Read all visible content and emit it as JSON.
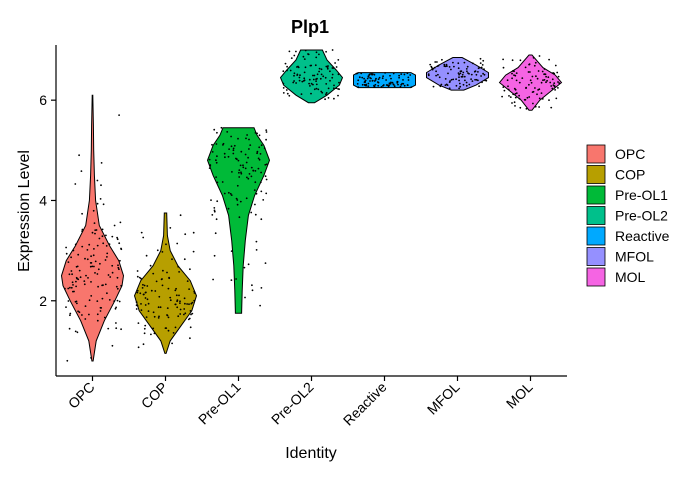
{
  "chart_data": {
    "type": "violin",
    "title": "Plp1",
    "xlabel": "Identity",
    "ylabel": "Expression Level",
    "ylim": [
      0.5,
      7.1
    ],
    "yticks": [
      2,
      4,
      6
    ],
    "categories": [
      "OPC",
      "COP",
      "Pre-OL1",
      "Pre-OL2",
      "Reactive",
      "MFOL",
      "MOL"
    ],
    "legend": {
      "position": "right",
      "entries": [
        "OPC",
        "COP",
        "Pre-OL1",
        "Pre-OL2",
        "Reactive",
        "MFOL",
        "MOL"
      ]
    },
    "series": [
      {
        "category": "OPC",
        "color": "#F8766D",
        "min": 0.8,
        "max": 6.1,
        "median": 2.4,
        "profile": [
          [
            0.8,
            0.02
          ],
          [
            1.2,
            0.12
          ],
          [
            1.6,
            0.38
          ],
          [
            2.0,
            0.72
          ],
          [
            2.3,
            0.95
          ],
          [
            2.5,
            1.0
          ],
          [
            2.8,
            0.85
          ],
          [
            3.1,
            0.55
          ],
          [
            3.5,
            0.22
          ],
          [
            4.0,
            0.1
          ],
          [
            4.5,
            0.06
          ],
          [
            5.0,
            0.04
          ],
          [
            5.5,
            0.03
          ],
          [
            6.1,
            0.01
          ]
        ]
      },
      {
        "category": "COP",
        "color": "#B79F00",
        "min": 0.95,
        "max": 3.75,
        "median": 2.1,
        "profile": [
          [
            0.95,
            0.02
          ],
          [
            1.2,
            0.15
          ],
          [
            1.5,
            0.5
          ],
          [
            1.8,
            0.85
          ],
          [
            2.1,
            1.0
          ],
          [
            2.4,
            0.8
          ],
          [
            2.7,
            0.4
          ],
          [
            3.0,
            0.15
          ],
          [
            3.3,
            0.06
          ],
          [
            3.75,
            0.04
          ]
        ]
      },
      {
        "category": "Pre-OL1",
        "color": "#00BA38",
        "min": 1.75,
        "max": 5.45,
        "median": 4.6,
        "profile": [
          [
            1.75,
            0.1
          ],
          [
            2.2,
            0.12
          ],
          [
            2.7,
            0.15
          ],
          [
            3.2,
            0.22
          ],
          [
            3.7,
            0.32
          ],
          [
            4.1,
            0.52
          ],
          [
            4.5,
            0.82
          ],
          [
            4.8,
            1.0
          ],
          [
            5.1,
            0.82
          ],
          [
            5.3,
            0.6
          ],
          [
            5.45,
            0.5
          ]
        ]
      },
      {
        "category": "Pre-OL2",
        "color": "#00C08B",
        "min": 5.95,
        "max": 7.0,
        "median": 6.4,
        "profile": [
          [
            5.95,
            0.1
          ],
          [
            6.1,
            0.5
          ],
          [
            6.3,
            0.9
          ],
          [
            6.45,
            1.0
          ],
          [
            6.6,
            0.8
          ],
          [
            6.8,
            0.5
          ],
          [
            7.0,
            0.35
          ]
        ]
      },
      {
        "category": "Reactive",
        "color": "#00A9FF",
        "min": 6.25,
        "max": 6.55,
        "median": 6.4,
        "profile": [
          [
            6.25,
            0.85
          ],
          [
            6.3,
            1.0
          ],
          [
            6.4,
            1.0
          ],
          [
            6.5,
            1.0
          ],
          [
            6.55,
            0.85
          ]
        ]
      },
      {
        "category": "MFOL",
        "color": "#9590FF",
        "min": 6.2,
        "max": 6.85,
        "median": 6.5,
        "profile": [
          [
            6.2,
            0.2
          ],
          [
            6.3,
            0.6
          ],
          [
            6.45,
            1.0
          ],
          [
            6.55,
            1.0
          ],
          [
            6.7,
            0.6
          ],
          [
            6.85,
            0.15
          ]
        ]
      },
      {
        "category": "MOL",
        "color": "#F564E3",
        "min": 5.8,
        "max": 6.9,
        "median": 6.4,
        "profile": [
          [
            5.8,
            0.05
          ],
          [
            6.0,
            0.3
          ],
          [
            6.2,
            0.7
          ],
          [
            6.35,
            1.0
          ],
          [
            6.5,
            0.8
          ],
          [
            6.65,
            0.4
          ],
          [
            6.9,
            0.05
          ]
        ]
      }
    ]
  }
}
